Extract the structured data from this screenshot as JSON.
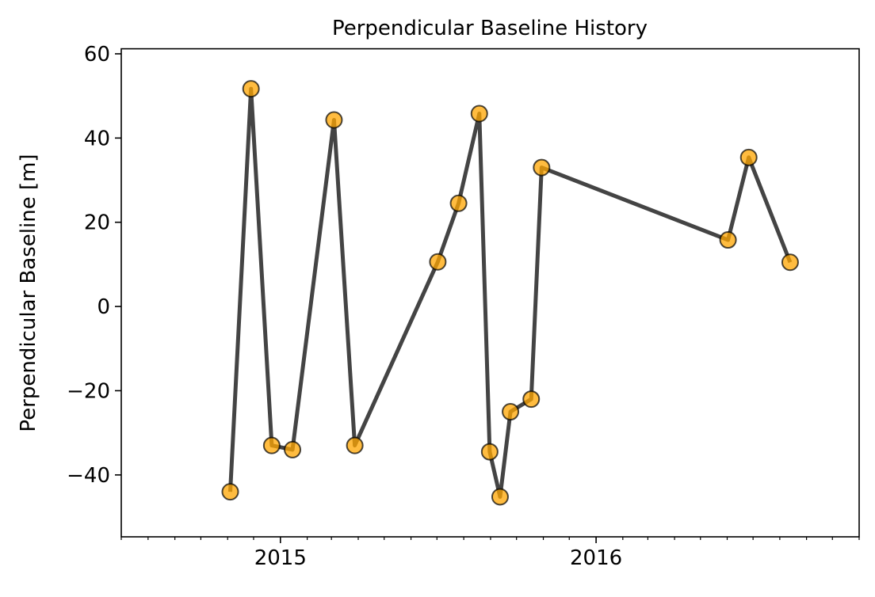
{
  "chart_data": {
    "type": "line",
    "title": "Perpendicular Baseline History",
    "xlabel": "",
    "ylabel": "Perpendicular Baseline [m]",
    "xlim": [
      "2014-07-01",
      "2016-11-01"
    ],
    "ylim": [
      -54.7,
      61.2
    ],
    "x_major_ticks": [
      {
        "date": "2015-01-01",
        "label": "2015"
      },
      {
        "date": "2016-01-01",
        "label": "2016"
      }
    ],
    "x_minor_ticks": "monthly",
    "y_ticks": [
      -40,
      -20,
      0,
      20,
      40,
      60
    ],
    "grid": false,
    "line_color": "#444444",
    "marker_color": "#FFA500",
    "marker_edge_color": "#000000",
    "series": [
      {
        "name": "Perpendicular Baseline",
        "x": [
          "2014-11-04",
          "2014-11-28",
          "2014-12-22",
          "2015-01-15",
          "2015-03-04",
          "2015-03-28",
          "2015-07-02",
          "2015-07-26",
          "2015-08-19",
          "2015-08-31",
          "2015-09-12",
          "2015-09-24",
          "2015-10-18",
          "2015-10-30",
          "2016-06-02",
          "2016-06-26",
          "2016-08-13"
        ],
        "y": [
          -44.0,
          51.7,
          -33.0,
          -34.0,
          44.3,
          -33.0,
          10.6,
          24.5,
          45.8,
          -34.5,
          -45.2,
          -25.0,
          -22.0,
          33.0,
          15.8,
          35.4,
          10.5
        ]
      }
    ]
  }
}
